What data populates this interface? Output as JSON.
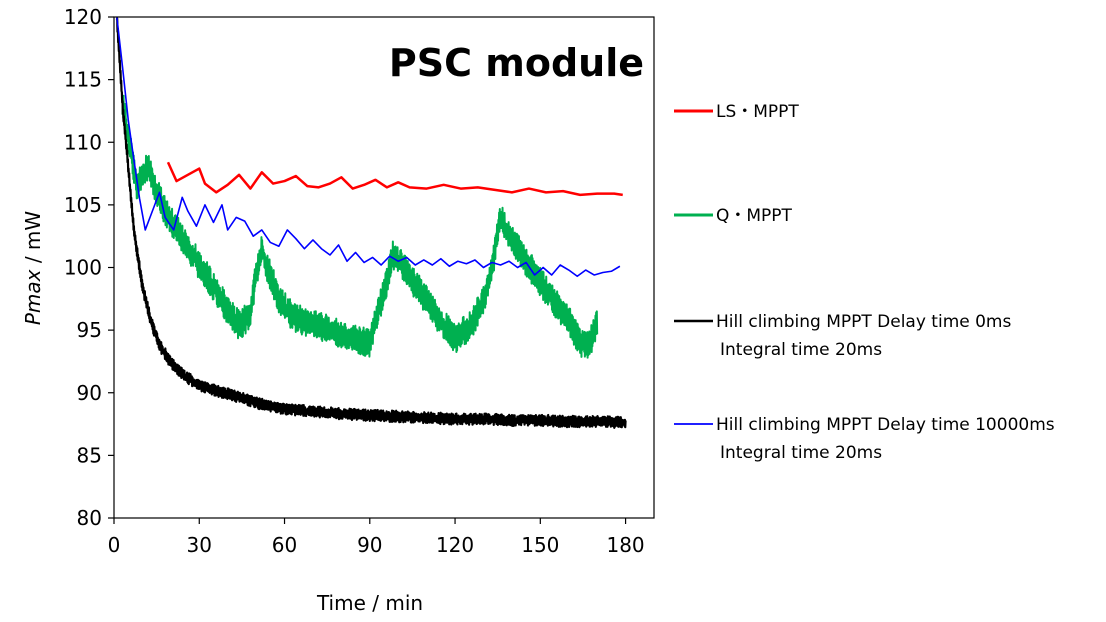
{
  "chart_data": {
    "type": "line",
    "title": "PSC module",
    "xlabel": "Time / min",
    "ylabel_italic": "Pmax",
    "ylabel_unit": " / mW",
    "xlim": [
      0,
      190
    ],
    "ylim": [
      80,
      120
    ],
    "xticks": [
      0,
      30,
      60,
      90,
      120,
      150,
      180
    ],
    "yticks": [
      80,
      85,
      90,
      95,
      100,
      105,
      110,
      115,
      120
    ],
    "grid": false,
    "legend_position": "right",
    "series": [
      {
        "name": "LS・MPPT",
        "color": "#ff0000",
        "line_width": 2.5,
        "x": [
          19,
          22,
          26,
          30,
          32,
          36,
          40,
          44,
          48,
          52,
          56,
          60,
          64,
          68,
          72,
          76,
          80,
          84,
          88,
          92,
          96,
          100,
          104,
          110,
          116,
          122,
          128,
          134,
          140,
          146,
          152,
          158,
          164,
          170,
          176,
          179
        ],
        "y": [
          108.4,
          106.9,
          107.4,
          107.9,
          106.7,
          106.0,
          106.6,
          107.4,
          106.3,
          107.6,
          106.7,
          106.9,
          107.3,
          106.5,
          106.4,
          106.7,
          107.2,
          106.3,
          106.6,
          107.0,
          106.4,
          106.8,
          106.4,
          106.3,
          106.6,
          106.3,
          106.4,
          106.2,
          106.0,
          106.3,
          106.0,
          106.1,
          105.8,
          105.9,
          105.9,
          105.8
        ]
      },
      {
        "name": "Q・MPPT",
        "color": "#00b050",
        "line_width": 2,
        "x": [
          3,
          5,
          8,
          12,
          15,
          18,
          22,
          26,
          30,
          35,
          40,
          44,
          48,
          50,
          52,
          54,
          58,
          63,
          68,
          74,
          80,
          86,
          90,
          93,
          96,
          98,
          100,
          103,
          108,
          114,
          120,
          126,
          130,
          133,
          135,
          136,
          138,
          142,
          148,
          154,
          160,
          164,
          167,
          170
        ],
        "y": [
          113,
          110.5,
          106.5,
          108.2,
          106,
          104.5,
          103.0,
          101.7,
          100.2,
          98.5,
          96.6,
          95.4,
          96.2,
          99.5,
          101.5,
          100.0,
          97.5,
          96.0,
          95.6,
          95.2,
          94.6,
          94.2,
          94.0,
          96.5,
          98.8,
          101.0,
          100.6,
          99.6,
          98.0,
          96.0,
          94.3,
          95.5,
          97.5,
          99.8,
          103.0,
          104.0,
          103.0,
          101.5,
          99.5,
          97.5,
          95.8,
          94.0,
          93.8,
          95.5
        ]
      },
      {
        "name": "Hill climbing MPPT Delay time 0ms",
        "name_line2": "Integral time 20ms",
        "color": "#000000",
        "line_width": 2.2,
        "x": [
          1,
          3,
          5,
          7,
          10,
          13,
          16,
          20,
          25,
          30,
          35,
          40,
          45,
          50,
          55,
          60,
          70,
          80,
          90,
          100,
          110,
          120,
          130,
          140,
          150,
          160,
          170,
          180
        ],
        "y": [
          120,
          113,
          108,
          103,
          98.5,
          95.7,
          93.8,
          92.4,
          91.3,
          90.6,
          90.2,
          89.9,
          89.6,
          89.2,
          88.9,
          88.7,
          88.5,
          88.3,
          88.2,
          88.1,
          88.0,
          87.9,
          87.9,
          87.8,
          87.8,
          87.7,
          87.7,
          87.6
        ]
      },
      {
        "name": "Hill climbing MPPT Delay time 10000ms",
        "name_line2": "Integral time 20ms",
        "color": "#0000ff",
        "line_width": 1.6,
        "x": [
          1,
          3,
          5,
          7,
          9,
          11,
          13,
          16,
          18,
          21,
          24,
          26,
          29,
          32,
          35,
          38,
          40,
          43,
          46,
          49,
          52,
          55,
          58,
          61,
          64,
          67,
          70,
          73,
          76,
          79,
          82,
          85,
          88,
          91,
          94,
          97,
          100,
          103,
          106,
          109,
          112,
          115,
          118,
          121,
          124,
          127,
          130,
          133,
          136,
          139,
          142,
          145,
          148,
          151,
          154,
          157,
          160,
          163,
          166,
          169,
          172,
          175,
          178
        ],
        "y": [
          120,
          116,
          111.8,
          108.6,
          105.5,
          103.0,
          104.2,
          106.0,
          104.0,
          103.0,
          105.6,
          104.5,
          103.3,
          105.0,
          103.6,
          105.0,
          103.0,
          104.0,
          103.7,
          102.5,
          103.0,
          102.0,
          101.7,
          103.0,
          102.3,
          101.5,
          102.2,
          101.5,
          101.0,
          101.8,
          100.5,
          101.2,
          100.4,
          100.8,
          100.2,
          100.9,
          100.5,
          100.8,
          100.2,
          100.6,
          100.2,
          100.7,
          100.1,
          100.5,
          100.3,
          100.6,
          100.0,
          100.4,
          100.2,
          100.5,
          100.0,
          100.4,
          99.4,
          100.0,
          99.4,
          100.2,
          99.8,
          99.3,
          99.8,
          99.4,
          99.6,
          99.7,
          100.1
        ]
      }
    ]
  }
}
